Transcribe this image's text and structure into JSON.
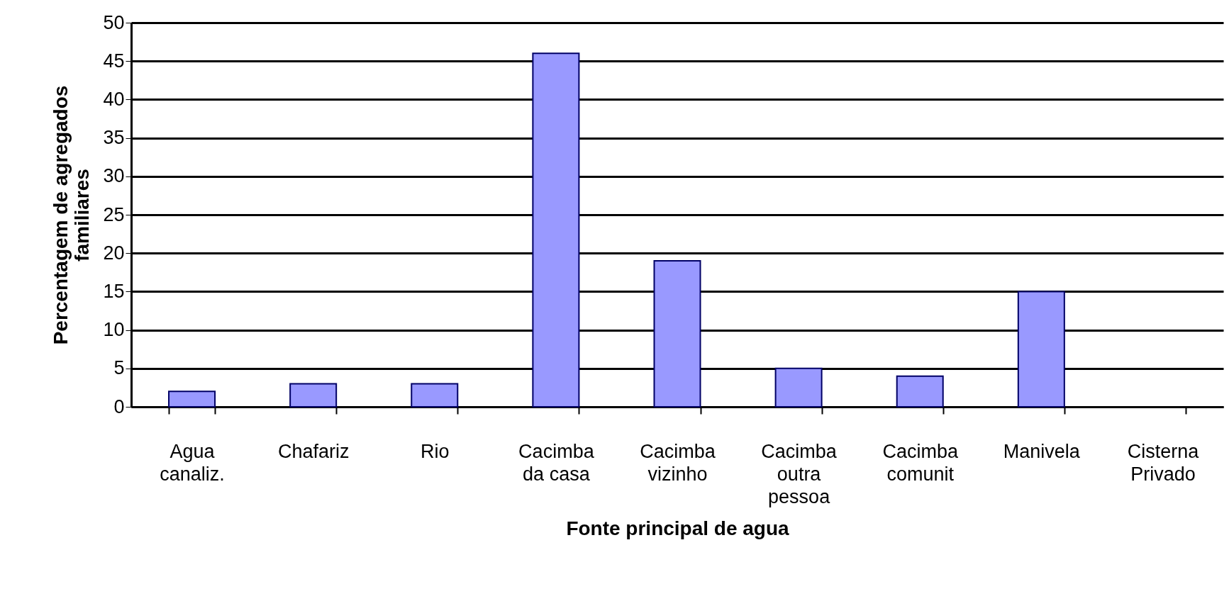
{
  "chart_data": {
    "type": "bar",
    "xlabel": "Fonte principal de agua",
    "ylabel": "Percentagem de agregados\nfamiliares",
    "categories": [
      "Agua\ncanaliz.",
      "Chafariz",
      "Rio",
      "Cacimba\nda casa",
      "Cacimba\nvizinho",
      "Cacimba\noutra\npessoa",
      "Cacimba\ncomunit",
      "Manivela",
      "Cisterna\nPrivado"
    ],
    "values": [
      2,
      3,
      3,
      46,
      19,
      5,
      4,
      15,
      0
    ],
    "color": "#9999ff",
    "ylim": [
      0,
      50
    ],
    "yticks": [
      0,
      5,
      10,
      15,
      20,
      25,
      30,
      35,
      40,
      45,
      50
    ],
    "grid": true
  }
}
